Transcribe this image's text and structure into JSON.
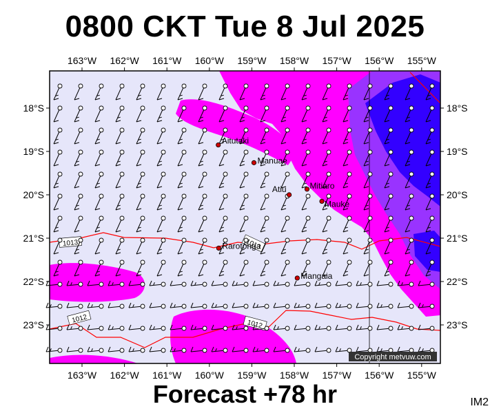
{
  "title": "0800 CKT Tue 8 Jul 2025",
  "subtitle": "Forecast +78 hr",
  "corner_label": "IM2",
  "copyright": "Copyright metvuw.com",
  "lon_ticks": [
    "163°W",
    "162°W",
    "161°W",
    "160°W",
    "159°W",
    "158°W",
    "157°W",
    "156°W",
    "155°W"
  ],
  "lat_ticks": [
    "18°S",
    "19°S",
    "20°S",
    "21°S",
    "22°S",
    "23°S"
  ],
  "places": [
    {
      "name": "Aitutaki",
      "lat": -18.85,
      "lon": -159.79
    },
    {
      "name": "Manuae",
      "lat": -19.26,
      "lon": -158.95
    },
    {
      "name": "Atiu",
      "lat": -20.0,
      "lon": -158.12
    },
    {
      "name": "Mitiaro",
      "lat": -19.87,
      "lon": -157.7
    },
    {
      "name": "Mauke",
      "lat": -20.15,
      "lon": -157.35
    },
    {
      "name": "Rarotonga",
      "lat": -21.23,
      "lon": -159.78
    },
    {
      "name": "Mangaia",
      "lat": -21.92,
      "lon": -157.93
    }
  ],
  "isobar_labels": [
    "1013",
    "1013",
    "1012",
    "1012"
  ],
  "colors": {
    "background": "#e6e6fa",
    "rain_light": "#ff00ff",
    "rain_mid": "#9933ff",
    "rain_heavy": "#3300ff",
    "isobar": "#ff0000",
    "station": "#cc0000"
  }
}
